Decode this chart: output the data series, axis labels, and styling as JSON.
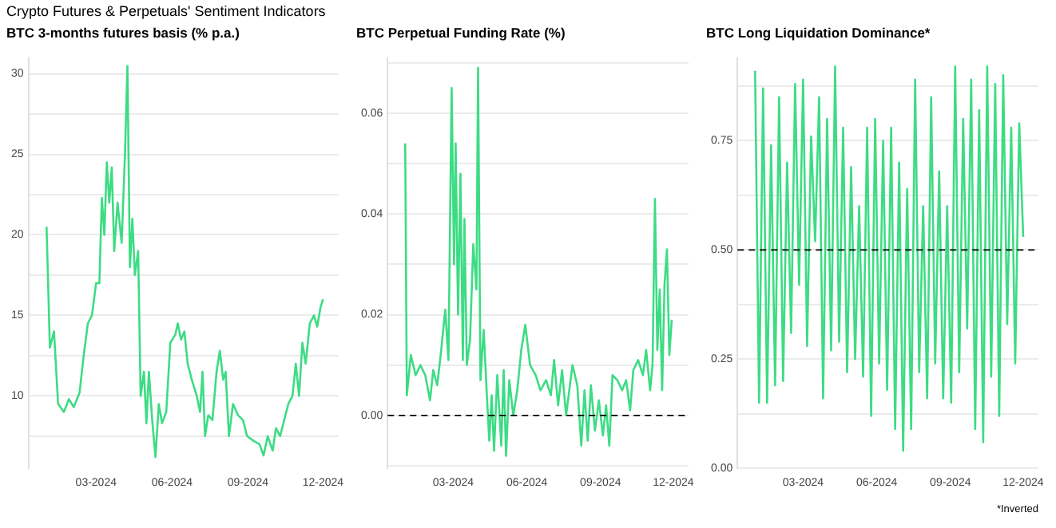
{
  "chart_data": [
    {
      "type": "line",
      "title": "Crypto Futures & Perpetuals' Sentiment Indicators",
      "subtitle": "BTC 3-months futures basis (% p.a.)",
      "x": [
        "2024-01-01",
        "2024-01-05",
        "2024-01-10",
        "2024-01-15",
        "2024-01-22",
        "2024-01-28",
        "2024-02-03",
        "2024-02-10",
        "2024-02-15",
        "2024-02-20",
        "2024-02-25",
        "2024-03-01",
        "2024-03-05",
        "2024-03-08",
        "2024-03-11",
        "2024-03-14",
        "2024-03-17",
        "2024-03-20",
        "2024-03-23",
        "2024-03-27",
        "2024-04-01",
        "2024-04-05",
        "2024-04-08",
        "2024-04-11",
        "2024-04-14",
        "2024-04-17",
        "2024-04-21",
        "2024-04-24",
        "2024-04-28",
        "2024-05-01",
        "2024-05-04",
        "2024-05-08",
        "2024-05-12",
        "2024-05-16",
        "2024-05-20",
        "2024-05-25",
        "2024-05-30",
        "2024-06-05",
        "2024-06-08",
        "2024-06-12",
        "2024-06-16",
        "2024-06-20",
        "2024-06-25",
        "2024-07-01",
        "2024-07-05",
        "2024-07-08",
        "2024-07-11",
        "2024-07-15",
        "2024-07-20",
        "2024-07-25",
        "2024-07-29",
        "2024-08-02",
        "2024-08-05",
        "2024-08-09",
        "2024-08-14",
        "2024-08-20",
        "2024-08-26",
        "2024-08-31",
        "2024-09-08",
        "2024-09-15",
        "2024-09-20",
        "2024-09-25",
        "2024-10-01",
        "2024-10-05",
        "2024-10-10",
        "2024-10-15",
        "2024-10-20",
        "2024-10-25",
        "2024-10-29",
        "2024-11-02",
        "2024-11-06",
        "2024-11-10",
        "2024-11-15",
        "2024-11-20",
        "2024-11-24",
        "2024-11-28",
        "2024-12-01"
      ],
      "series": [
        {
          "color": "#3ddc84",
          "values": [
            20.5,
            13,
            14,
            9.5,
            9,
            9.8,
            9.3,
            10.2,
            12.5,
            14.5,
            15,
            17,
            17,
            22.3,
            20,
            24.5,
            22,
            24.2,
            19,
            22,
            19.5,
            25,
            30.5,
            18,
            21,
            17.5,
            19,
            10,
            11.5,
            8.3,
            11.5,
            8.5,
            6.2,
            9.5,
            8.3,
            9,
            13.3,
            13.8,
            14.5,
            13.5,
            14,
            12,
            11,
            10,
            9,
            11.5,
            7.5,
            8.8,
            8.5,
            11.5,
            12.8,
            11,
            11.5,
            7.5,
            9.5,
            8.8,
            8.5,
            7.5,
            7.2,
            7,
            6.3,
            7.5,
            6.6,
            8,
            7.5,
            8.5,
            9.5,
            10,
            12,
            10,
            13.3,
            12,
            14.5,
            15,
            14.3,
            15.5,
            16
          ]
        }
      ],
      "xlim": [
        "2023-12-10",
        "2024-12-20"
      ],
      "xticks": [
        {
          "value": "2024-03",
          "label": "03-2024"
        },
        {
          "value": "2024-06",
          "label": "06-2024"
        },
        {
          "value": "2024-09",
          "label": "09-2024"
        },
        {
          "value": "2024-12",
          "label": "12-2024"
        }
      ],
      "ylim": [
        5.5,
        31
      ],
      "yticks": [
        {
          "value": 7.5,
          "label": null
        },
        10,
        {
          "value": 12.5,
          "label": null
        },
        15,
        {
          "value": 17.5,
          "label": null
        },
        20,
        {
          "value": 22.5,
          "label": null
        },
        25,
        {
          "value": 27.5,
          "label": null
        },
        30
      ],
      "grid": "y",
      "legend": false
    },
    {
      "type": "line",
      "title": "BTC Perpetual Funding Rate (%)",
      "x": [
        "2024-01-01",
        "2024-01-03",
        "2024-01-08",
        "2024-01-14",
        "2024-01-20",
        "2024-01-26",
        "2024-02-01",
        "2024-02-05",
        "2024-02-10",
        "2024-02-15",
        "2024-02-20",
        "2024-02-24",
        "2024-02-28",
        "2024-03-02",
        "2024-03-04",
        "2024-03-07",
        "2024-03-10",
        "2024-03-13",
        "2024-03-15",
        "2024-03-18",
        "2024-03-22",
        "2024-03-26",
        "2024-03-30",
        "2024-04-01",
        "2024-04-04",
        "2024-04-08",
        "2024-04-12",
        "2024-04-15",
        "2024-04-18",
        "2024-04-21",
        "2024-04-25",
        "2024-04-30",
        "2024-05-03",
        "2024-05-06",
        "2024-05-10",
        "2024-05-15",
        "2024-05-20",
        "2024-05-25",
        "2024-05-30",
        "2024-06-05",
        "2024-06-12",
        "2024-06-18",
        "2024-06-25",
        "2024-07-01",
        "2024-07-05",
        "2024-07-10",
        "2024-07-15",
        "2024-07-20",
        "2024-07-28",
        "2024-08-03",
        "2024-08-08",
        "2024-08-12",
        "2024-08-16",
        "2024-08-20",
        "2024-08-25",
        "2024-08-30",
        "2024-09-04",
        "2024-09-08",
        "2024-09-12",
        "2024-09-16",
        "2024-09-22",
        "2024-09-28",
        "2024-10-03",
        "2024-10-08",
        "2024-10-12",
        "2024-10-18",
        "2024-10-24",
        "2024-10-28",
        "2024-11-02",
        "2024-11-05",
        "2024-11-08",
        "2024-11-11",
        "2024-11-14",
        "2024-11-17",
        "2024-11-20",
        "2024-11-23",
        "2024-11-26",
        "2024-11-29"
      ],
      "series": [
        {
          "color": "#3ddc84",
          "values": [
            0.054,
            0.004,
            0.012,
            0.008,
            0.01,
            0.008,
            0.003,
            0.009,
            0.006,
            0.013,
            0.021,
            0.011,
            0.065,
            0.03,
            0.054,
            0.02,
            0.048,
            0.011,
            0.039,
            0.01,
            0.015,
            0.034,
            0.025,
            0.069,
            0.007,
            0.017,
            0.004,
            -0.005,
            0.004,
            -0.007,
            0.008,
            -0.006,
            0.009,
            -0.008,
            0.007,
            0,
            0.005,
            0.013,
            0.018,
            0.01,
            0.008,
            0.005,
            0.007,
            0.004,
            0.011,
            0.002,
            0.009,
            0,
            0.01,
            0.006,
            -0.006,
            0.005,
            -0.005,
            0.006,
            -0.003,
            0.003,
            -0.004,
            0.002,
            -0.006,
            0.008,
            0.007,
            0.005,
            0.007,
            0.001,
            0.009,
            0.011,
            0.008,
            0.013,
            0.005,
            0.01,
            0.043,
            0.013,
            0.025,
            0.005,
            0.026,
            0.033,
            0.012,
            0.019
          ]
        }
      ],
      "xlim": [
        "2023-12-10",
        "2024-12-20"
      ],
      "xticks": [
        {
          "value": "2024-03",
          "label": "03-2024"
        },
        {
          "value": "2024-06",
          "label": "06-2024"
        },
        {
          "value": "2024-09",
          "label": "09-2024"
        },
        {
          "value": "2024-12",
          "label": "12-2024"
        }
      ],
      "ylim": [
        -0.0105,
        0.071
      ],
      "yticks": [
        {
          "value": -0.01,
          "label": null
        },
        {
          "value": 0,
          "label": "0.00"
        },
        {
          "value": 0.01,
          "label": null
        },
        {
          "value": 0.02,
          "label": "0.02"
        },
        {
          "value": 0.03,
          "label": null
        },
        {
          "value": 0.04,
          "label": "0.04"
        },
        {
          "value": 0.05,
          "label": null
        },
        {
          "value": 0.06,
          "label": "0.06"
        },
        {
          "value": 0.07,
          "label": null
        }
      ],
      "grid": "y",
      "legend": false,
      "ref_lines": [
        {
          "axis": "y",
          "value": 0,
          "color": "#000000",
          "line_style": "dashed"
        }
      ]
    },
    {
      "type": "line",
      "title": "BTC Long Liquidation Dominance*",
      "x": [
        "2024-01-01",
        "2024-01-06",
        "2024-01-11",
        "2024-01-16",
        "2024-01-21",
        "2024-01-26",
        "2024-01-31",
        "2024-02-05",
        "2024-02-10",
        "2024-02-15",
        "2024-02-20",
        "2024-02-25",
        "2024-03-01",
        "2024-03-06",
        "2024-03-11",
        "2024-03-16",
        "2024-03-21",
        "2024-03-26",
        "2024-03-31",
        "2024-04-05",
        "2024-04-10",
        "2024-04-15",
        "2024-04-20",
        "2024-04-25",
        "2024-04-30",
        "2024-05-05",
        "2024-05-10",
        "2024-05-15",
        "2024-05-20",
        "2024-05-25",
        "2024-05-30",
        "2024-06-04",
        "2024-06-09",
        "2024-06-14",
        "2024-06-19",
        "2024-06-24",
        "2024-06-29",
        "2024-07-04",
        "2024-07-09",
        "2024-07-14",
        "2024-07-19",
        "2024-07-24",
        "2024-07-29",
        "2024-08-03",
        "2024-08-08",
        "2024-08-13",
        "2024-08-18",
        "2024-08-23",
        "2024-08-28",
        "2024-09-02",
        "2024-09-07",
        "2024-09-12",
        "2024-09-17",
        "2024-09-22",
        "2024-09-27",
        "2024-10-02",
        "2024-10-07",
        "2024-10-12",
        "2024-10-17",
        "2024-10-22",
        "2024-10-27",
        "2024-11-01",
        "2024-11-06",
        "2024-11-11",
        "2024-11-16",
        "2024-11-21",
        "2024-11-26",
        "2024-12-01"
      ],
      "series": [
        {
          "color": "#3ddc84",
          "values": [
            0.91,
            0.15,
            0.87,
            0.15,
            0.74,
            0.19,
            0.85,
            0.2,
            0.7,
            0.31,
            0.88,
            0.42,
            0.89,
            0.28,
            0.76,
            0.52,
            0.85,
            0.16,
            0.8,
            0.27,
            0.92,
            0.29,
            0.78,
            0.22,
            0.69,
            0.25,
            0.6,
            0.21,
            0.78,
            0.12,
            0.8,
            0.24,
            0.75,
            0.18,
            0.78,
            0.09,
            0.7,
            0.04,
            0.64,
            0.09,
            0.89,
            0.22,
            0.6,
            0.16,
            0.85,
            0.24,
            0.68,
            0.16,
            0.6,
            0.15,
            0.92,
            0.22,
            0.8,
            0.32,
            0.89,
            0.09,
            0.82,
            0.06,
            0.92,
            0.21,
            0.88,
            0.12,
            0.9,
            0.33,
            0.78,
            0.24,
            0.79,
            0.53
          ]
        }
      ],
      "xlim": [
        "2023-12-10",
        "2024-12-20"
      ],
      "xticks": [
        {
          "value": "2024-03",
          "label": "03-2024"
        },
        {
          "value": "2024-06",
          "label": "06-2024"
        },
        {
          "value": "2024-09",
          "label": "09-2024"
        },
        {
          "value": "2024-12",
          "label": "12-2024"
        }
      ],
      "ylim": [
        0,
        0.94
      ],
      "yticks": [
        {
          "value": 0,
          "label": "0.00"
        },
        {
          "value": 0.125,
          "label": null
        },
        {
          "value": 0.25,
          "label": "0.25"
        },
        {
          "value": 0.375,
          "label": null
        },
        {
          "value": 0.5,
          "label": "0.50"
        },
        {
          "value": 0.625,
          "label": null
        },
        {
          "value": 0.75,
          "label": "0.75"
        },
        {
          "value": 0.875,
          "label": null
        }
      ],
      "grid": "y",
      "legend": false,
      "ref_lines": [
        {
          "axis": "y",
          "value": 0.5,
          "color": "#000000",
          "line_style": "dashed"
        }
      ],
      "annotations": [
        "*Inverted"
      ]
    }
  ]
}
